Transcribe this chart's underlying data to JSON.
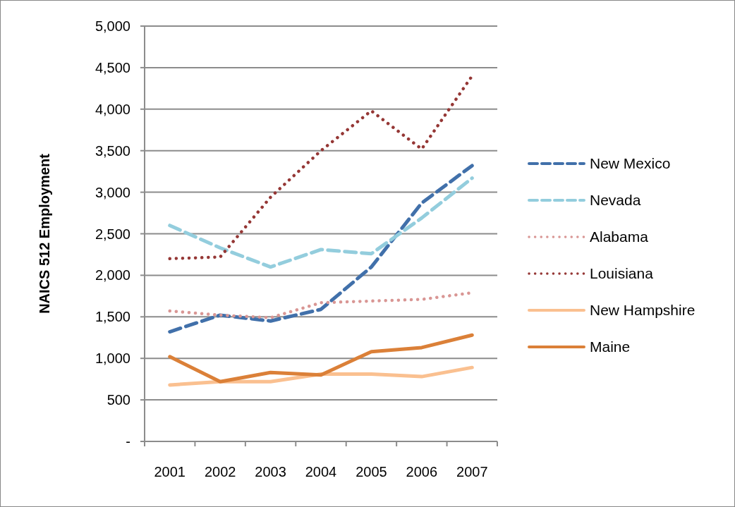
{
  "chart_data": {
    "type": "line",
    "ylabel": "NAICS 512 Employment",
    "categories": [
      "2001",
      "2002",
      "2003",
      "2004",
      "2005",
      "2006",
      "2007"
    ],
    "ylim": [
      0,
      5000
    ],
    "yticks": [
      {
        "value": 0,
        "label": "-"
      },
      {
        "value": 500,
        "label": "500"
      },
      {
        "value": 1000,
        "label": "1,000"
      },
      {
        "value": 1500,
        "label": "1,500"
      },
      {
        "value": 2000,
        "label": "2,000"
      },
      {
        "value": 2500,
        "label": "2,500"
      },
      {
        "value": 3000,
        "label": "3,000"
      },
      {
        "value": 3500,
        "label": "3,500"
      },
      {
        "value": 4000,
        "label": "4,000"
      },
      {
        "value": 4500,
        "label": "4,500"
      },
      {
        "value": 5000,
        "label": "5,000"
      }
    ],
    "grid": "y",
    "legend": "right",
    "marker": "none",
    "series": [
      {
        "name": "New Mexico",
        "color": "#4170aa",
        "line_style": "dashed",
        "values": [
          1320,
          1520,
          1450,
          1590,
          2100,
          2870,
          3320
        ]
      },
      {
        "name": "Nevada",
        "color": "#93cddd",
        "line_style": "dashed",
        "values": [
          2600,
          2330,
          2100,
          2310,
          2260,
          2690,
          3170
        ]
      },
      {
        "name": "Alabama",
        "color": "#d99694",
        "line_style": "dotted",
        "values": [
          1570,
          1520,
          1490,
          1670,
          1690,
          1710,
          1790
        ]
      },
      {
        "name": "Louisiana",
        "color": "#953735",
        "line_style": "dotted",
        "values": [
          2200,
          2220,
          2940,
          3500,
          3980,
          3520,
          4400
        ]
      },
      {
        "name": "New Hampshire",
        "color": "#fac090",
        "line_style": "solid",
        "values": [
          680,
          720,
          720,
          810,
          810,
          780,
          890
        ]
      },
      {
        "name": "Maine",
        "color": "#db8038",
        "line_style": "solid",
        "values": [
          1020,
          720,
          830,
          800,
          1080,
          1130,
          1280
        ]
      }
    ]
  }
}
